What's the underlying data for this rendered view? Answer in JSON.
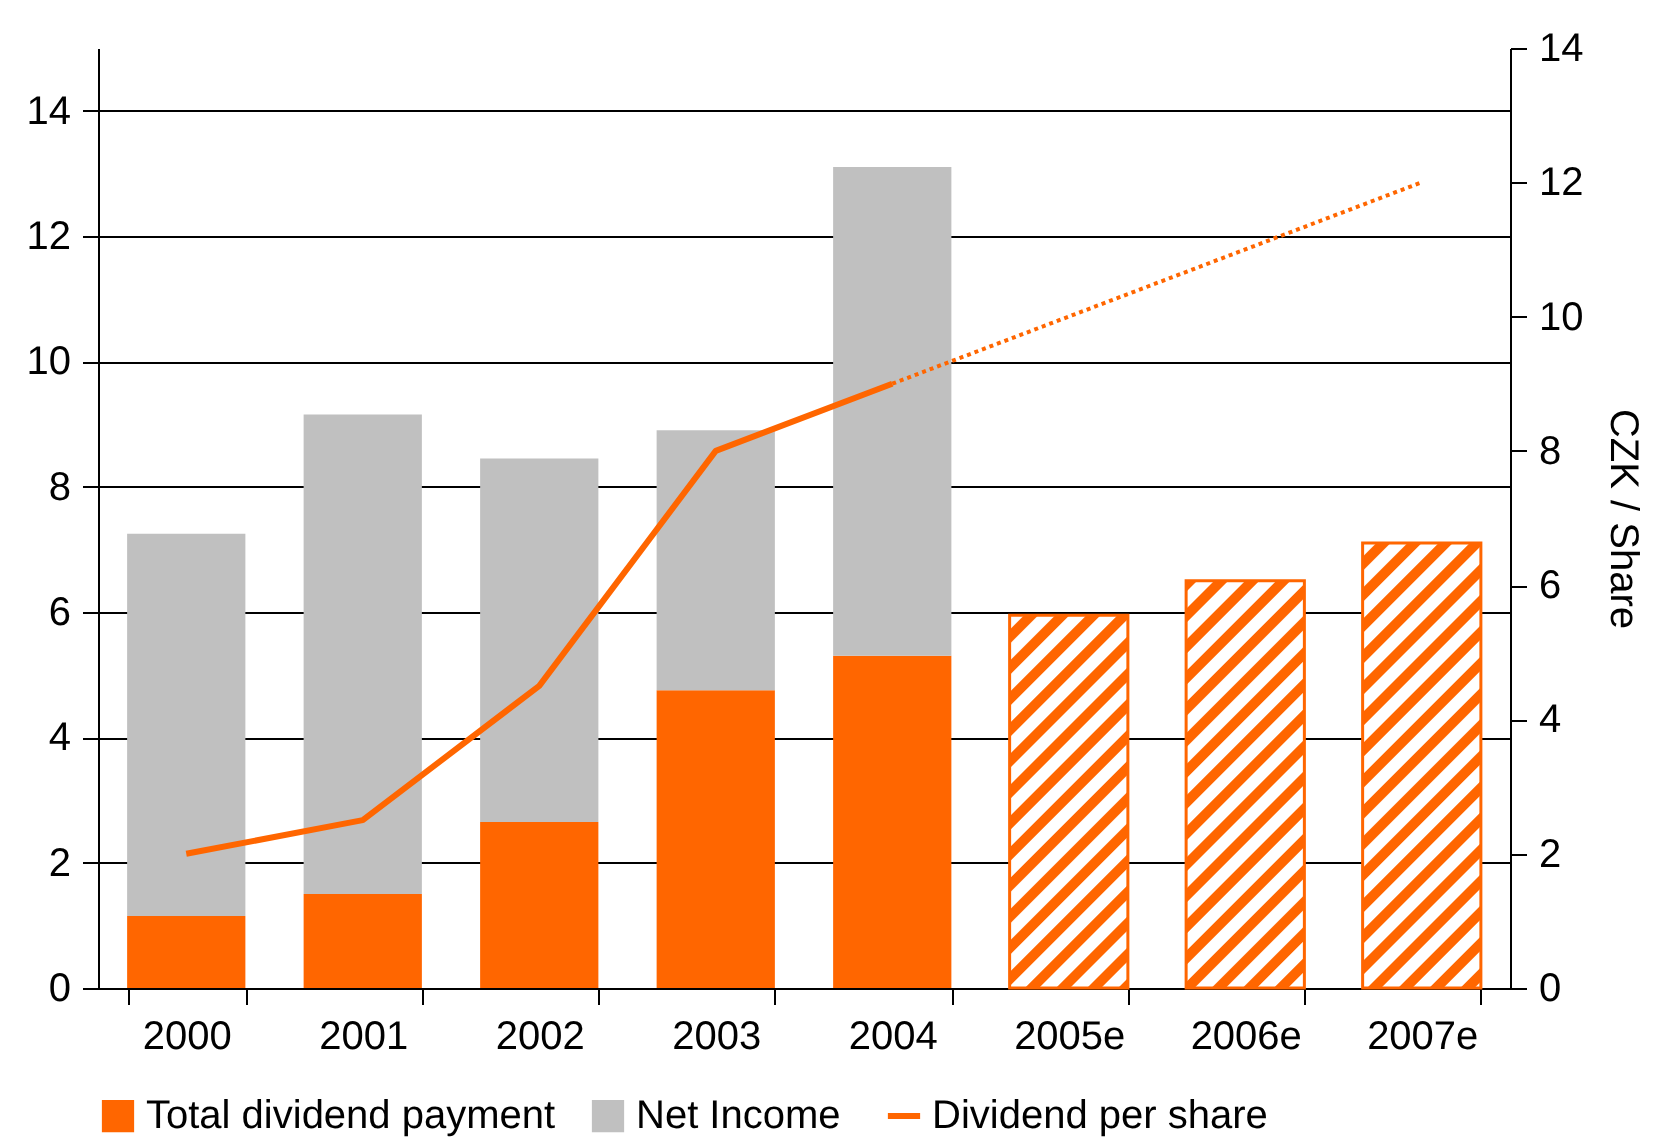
{
  "chart_data": {
    "type": "bar",
    "y2label": "CZK / Share",
    "categories": [
      "2000",
      "2001",
      "2002",
      "2003",
      "2004",
      "2005e",
      "2006e",
      "2007e"
    ],
    "series": [
      {
        "name": "Total dividend payment",
        "color": "#ff6600",
        "values": [
          1.15,
          1.5,
          2.65,
          4.75,
          5.3,
          null,
          null,
          null
        ]
      },
      {
        "name": "Net Income",
        "color": "#c0c0c0",
        "values": [
          6.1,
          7.65,
          5.8,
          4.15,
          7.8,
          null,
          null,
          null
        ]
      },
      {
        "color": "#ff6600",
        "values": [
          null,
          null,
          null,
          null,
          null,
          5.95,
          6.5,
          7.1
        ]
      },
      {
        "name": "Dividend per share",
        "type": "line",
        "axis": "y2",
        "color": "#ff6600",
        "line_style": "solid",
        "values": [
          2.0,
          2.5,
          4.5,
          8.0,
          9.0,
          null,
          null,
          null
        ]
      },
      {
        "type": "line",
        "axis": "y2",
        "color": "#ff6600",
        "line_style": "dotted",
        "values": [
          null,
          null,
          null,
          null,
          9.0,
          10,
          11,
          12
        ]
      }
    ],
    "stacked": true,
    "ylim": [
      0,
      15
    ],
    "yticks": [
      0,
      2,
      4,
      6,
      8,
      10,
      12,
      14
    ],
    "y2lim": [
      0,
      14
    ],
    "y2ticks": [
      0,
      2,
      4,
      6,
      8,
      10,
      12,
      14
    ],
    "grid": "y",
    "legend": "bottom"
  }
}
